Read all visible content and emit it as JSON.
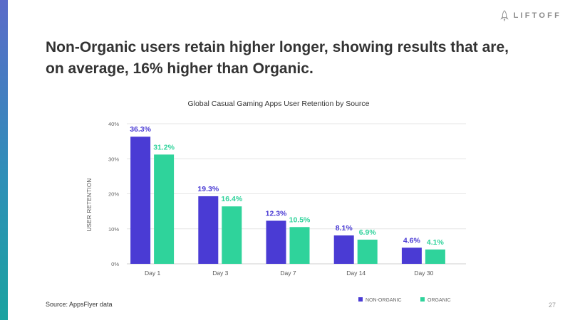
{
  "brand": {
    "logo_text": "LIFTOFF"
  },
  "headline": {
    "line1": "Non-Organic users retain higher longer, showing results that are,",
    "line2": "on average, 16% higher than Organic."
  },
  "footer": {
    "source": "Source: AppsFlyer data",
    "page_number": "27"
  },
  "colors": {
    "non_organic": "#4a3bd4",
    "organic": "#2fd39b",
    "side_bar": "#3a7fc0"
  },
  "chart_data": {
    "type": "bar",
    "title": "Global Casual Gaming Apps User Retention by Source",
    "xlabel": "",
    "ylabel": "USER RETENTION",
    "categories": [
      "Day 1",
      "Day 3",
      "Day 7",
      "Day 14",
      "Day 30"
    ],
    "series": [
      {
        "name": "NON-ORGANIC",
        "values": [
          36.3,
          19.3,
          12.3,
          8.1,
          4.6
        ],
        "labels": [
          "36.3%",
          "19.3%",
          "12.3%",
          "8.1%",
          "4.6%"
        ]
      },
      {
        "name": "ORGANIC",
        "values": [
          31.2,
          16.4,
          10.5,
          6.9,
          4.1
        ],
        "labels": [
          "31.2%",
          "16.4%",
          "10.5%",
          "6.9%",
          "4.1%"
        ]
      }
    ],
    "ylim": [
      0,
      40
    ],
    "yticks": [
      0,
      10,
      20,
      30,
      40
    ],
    "ytick_labels": [
      "0%",
      "10%",
      "20%",
      "30%",
      "40%"
    ],
    "grid": true,
    "legend": "bottom-right"
  }
}
